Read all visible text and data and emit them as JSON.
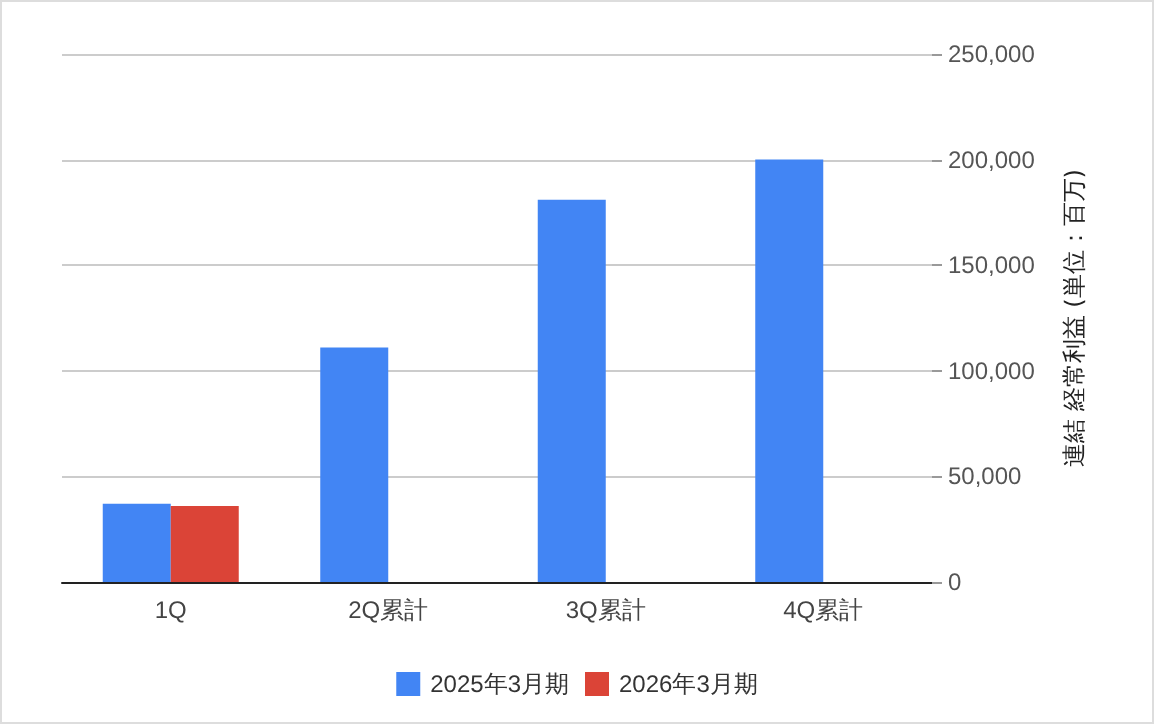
{
  "chart_data": {
    "type": "bar",
    "ylabel": "連結 経常利益 (単位：百万)",
    "categories": [
      "1Q",
      "2Q累計",
      "3Q累計",
      "4Q累計"
    ],
    "series": [
      {
        "name": "2025年3月期",
        "color": "#4285f4",
        "values": [
          37000,
          111000,
          181000,
          200000
        ]
      },
      {
        "name": "2026年3月期",
        "color": "#db4437",
        "values": [
          36000,
          null,
          null,
          null
        ]
      }
    ],
    "ylim": [
      0,
      250000
    ],
    "yticks": [
      0,
      {
        "value": 50000,
        "label": "50,000"
      },
      {
        "value": 100000,
        "label": "100,000"
      },
      {
        "value": 150000,
        "label": "150,000"
      },
      {
        "value": 200000,
        "label": "200,000"
      },
      {
        "value": 250000,
        "label": "250,000"
      }
    ],
    "grid": "y",
    "legend": "bottom"
  }
}
